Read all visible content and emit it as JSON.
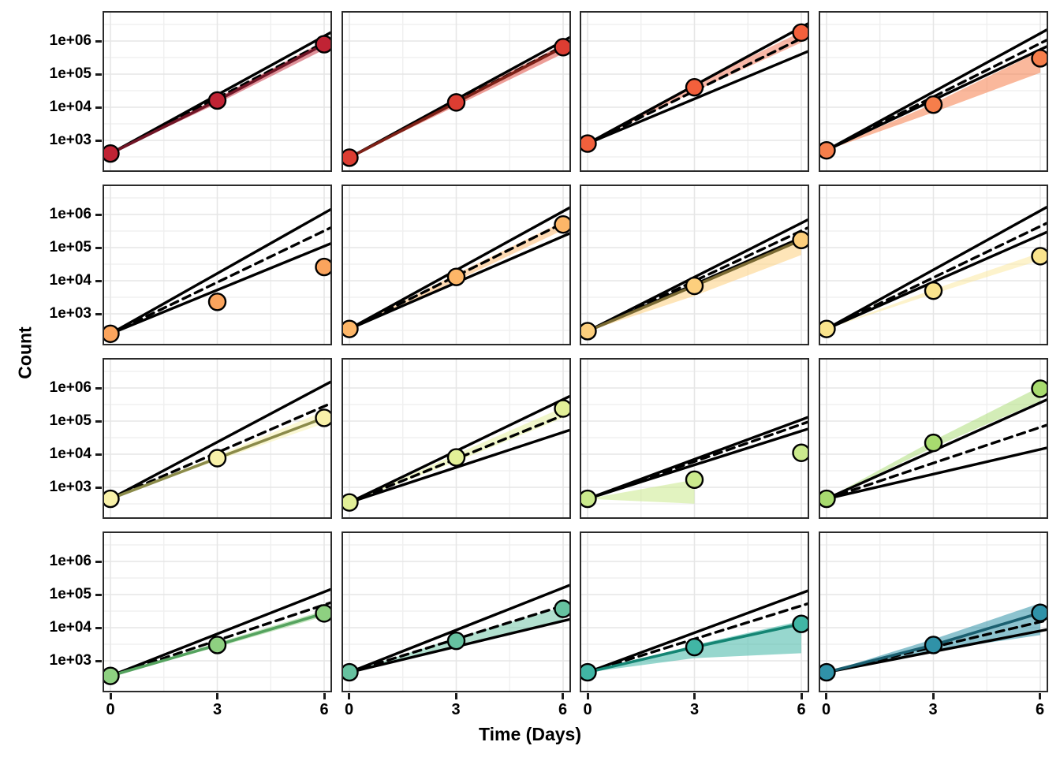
{
  "chart_data": {
    "type": "line",
    "layout": "facet-grid-4x4",
    "xlabel": "Time (Days)",
    "ylabel": "Count",
    "x_ticks": [
      "0",
      "3",
      "6"
    ],
    "x_values": [
      0,
      3,
      6
    ],
    "y_tick_labels": [
      "1e+06",
      "1e+05",
      "1e+04",
      "1e+03"
    ],
    "y_tick_values": [
      1000000,
      100000,
      10000,
      1000
    ],
    "y_scale": "log10",
    "ylim": [
      110,
      8000000
    ],
    "xlim": [
      -0.45,
      6.45
    ],
    "grid": "major and minor gridlines, light gray, white panel background",
    "legend": "none",
    "style": "black envelope lines (solid upper/lower), black dashed center prediction, colored fit line, colored ribbon, colored points with black outline",
    "facets": [
      {
        "row": 1,
        "col": 1,
        "point_color": "#C02334",
        "line_color": "#701526",
        "ribbon_alpha": 0.5,
        "fit_line": true,
        "points": {
          "x": [
            0,
            3,
            6
          ],
          "count": [
            400,
            16000,
            800000
          ]
        },
        "band": {
          "upper_end": 1400000,
          "dashed_end": 900000,
          "lower_end": null
        },
        "ribbon": {
          "x": [
            0,
            3,
            6
          ],
          "upper": [
            400,
            19000,
            1000000
          ],
          "lower": [
            400,
            13000,
            550000
          ]
        }
      },
      {
        "row": 1,
        "col": 2,
        "point_color": "#DC3D32",
        "line_color": "#7E2117",
        "ribbon_alpha": 0.5,
        "fit_line": true,
        "points": {
          "x": [
            0,
            3,
            6
          ],
          "count": [
            300,
            14000,
            650000
          ]
        },
        "band": {
          "upper_end": 1000000,
          "dashed_end": 700000,
          "lower_end": null
        },
        "ribbon": {
          "x": [
            0,
            3,
            6
          ],
          "upper": [
            300,
            17000,
            800000
          ],
          "lower": [
            300,
            11000,
            420000
          ]
        }
      },
      {
        "row": 1,
        "col": 3,
        "point_color": "#F2603C",
        "line_color": null,
        "ribbon_alpha": 0.45,
        "fit_line": false,
        "points": {
          "x": [
            0,
            3,
            6
          ],
          "count": [
            800,
            40000,
            1800000
          ]
        },
        "band": {
          "upper_end": 2600000,
          "dashed_end": 1200000,
          "lower_end": 400000
        },
        "ribbon": {
          "x": [
            0,
            3,
            6
          ],
          "upper": [
            800,
            50000,
            1900000
          ],
          "lower": [
            800,
            30000,
            900000
          ]
        }
      },
      {
        "row": 1,
        "col": 4,
        "point_color": "#F67E4B",
        "line_color": null,
        "ribbon_alpha": 0.55,
        "fit_line": false,
        "points": {
          "x": [
            0,
            3,
            6
          ],
          "count": [
            500,
            12000,
            300000
          ]
        },
        "band": {
          "upper_end": 1700000,
          "dashed_end": 850000,
          "lower_end": 550000
        },
        "ribbon": {
          "x": [
            0,
            3,
            6
          ],
          "upper": [
            500,
            13000,
            500000
          ],
          "lower": [
            500,
            7000,
            110000
          ]
        }
      },
      {
        "row": 2,
        "col": 1,
        "point_color": "#FBA45D",
        "line_color": null,
        "ribbon_alpha": 0.5,
        "fit_line": false,
        "points": {
          "x": [
            0,
            3,
            6
          ],
          "count": [
            250,
            2300,
            26000
          ]
        },
        "band": {
          "upper_end": 1100000,
          "dashed_end": 320000,
          "lower_end": 110000
        },
        "ribbon": null
      },
      {
        "row": 2,
        "col": 2,
        "point_color": "#FDB668",
        "line_color": null,
        "ribbon_alpha": 0.5,
        "fit_line": false,
        "points": {
          "x": [
            0,
            3,
            6
          ],
          "count": [
            350,
            13000,
            500000
          ]
        },
        "band": {
          "upper_end": 1250000,
          "dashed_end": 550000,
          "lower_end": 220000
        },
        "ribbon": {
          "x": [
            0,
            3,
            6
          ],
          "upper": [
            350,
            16000,
            620000
          ],
          "lower": [
            350,
            10000,
            340000
          ]
        }
      },
      {
        "row": 2,
        "col": 3,
        "point_color": "#FDCF7D",
        "line_color": "#7A6A33",
        "ribbon_alpha": 0.55,
        "fit_line": true,
        "points": {
          "x": [
            0,
            3,
            6
          ],
          "count": [
            300,
            7000,
            170000
          ]
        },
        "band": {
          "upper_end": 550000,
          "dashed_end": 320000,
          "lower_end": 200000
        },
        "ribbon": {
          "x": [
            0,
            3,
            6
          ],
          "upper": [
            300,
            7500,
            180000
          ],
          "lower": [
            300,
            3500,
            60000
          ]
        }
      },
      {
        "row": 2,
        "col": 4,
        "point_color": "#FAE48D",
        "line_color": null,
        "ribbon_alpha": 0.45,
        "fit_line": false,
        "points": {
          "x": [
            0,
            3,
            6
          ],
          "count": [
            350,
            5000,
            55000
          ]
        },
        "band": {
          "upper_end": 1300000,
          "dashed_end": 440000,
          "lower_end": 240000
        },
        "ribbon": {
          "x": [
            0,
            3,
            6
          ],
          "upper": [
            350,
            5500,
            70000
          ],
          "lower": [
            350,
            4000,
            42000
          ]
        }
      },
      {
        "row": 3,
        "col": 1,
        "point_color": "#F8F1A9",
        "line_color": "#8B8B4A",
        "ribbon_alpha": 0.5,
        "fit_line": true,
        "points": {
          "x": [
            0,
            3,
            6
          ],
          "count": [
            450,
            7600,
            125000
          ]
        },
        "band": {
          "upper_end": 1200000,
          "dashed_end": 280000,
          "lower_end": null
        },
        "ribbon": {
          "x": [
            0,
            3,
            6
          ],
          "upper": [
            450,
            9000,
            200000
          ],
          "lower": [
            450,
            6500,
            85000
          ]
        }
      },
      {
        "row": 3,
        "col": 2,
        "point_color": "#E3F098",
        "line_color": null,
        "ribbon_alpha": 0.5,
        "fit_line": false,
        "points": {
          "x": [
            0,
            3,
            6
          ],
          "count": [
            350,
            8000,
            240000
          ]
        },
        "band": {
          "upper_end": 450000,
          "dashed_end": 150000,
          "lower_end": 46000
        },
        "ribbon": {
          "x": [
            0,
            3,
            6
          ],
          "upper": [
            350,
            10000,
            260000
          ],
          "lower": [
            350,
            6000,
            125000
          ]
        }
      },
      {
        "row": 3,
        "col": 3,
        "point_color": "#CBEA8D",
        "line_color": null,
        "ribbon_alpha": 0.55,
        "fit_line": false,
        "points": {
          "x": [
            0,
            3,
            6
          ],
          "count": [
            450,
            1700,
            11000
          ]
        },
        "band": {
          "upper_end": 110000,
          "dashed_end": 80000,
          "lower_end": 50000
        },
        "ribbon": {
          "x": [
            0,
            3
          ],
          "upper": [
            450,
            1700
          ],
          "lower": [
            450,
            320
          ]
        }
      },
      {
        "row": 3,
        "col": 4,
        "point_color": "#A8DB6F",
        "line_color": null,
        "ribbon_alpha": 0.5,
        "fit_line": false,
        "points": {
          "x": [
            0,
            3,
            6
          ],
          "count": [
            450,
            22000,
            950000
          ]
        },
        "band": {
          "upper_end": 360000,
          "dashed_end": 65000,
          "lower_end": 14000
        },
        "ribbon": {
          "x": [
            0,
            3,
            6
          ],
          "upper": [
            450,
            26000,
            1100000
          ],
          "lower": [
            450,
            16000,
            400000
          ]
        }
      },
      {
        "row": 4,
        "col": 1,
        "point_color": "#8ED081",
        "line_color": "#55A35F",
        "ribbon_alpha": 0.5,
        "fit_line": true,
        "points": {
          "x": [
            0,
            3,
            6
          ],
          "count": [
            350,
            3000,
            27000
          ]
        },
        "band": {
          "upper_end": 120000,
          "dashed_end": 49000,
          "lower_end": null
        },
        "ribbon": {
          "x": [
            0,
            3,
            6
          ],
          "upper": [
            350,
            3500,
            33000
          ],
          "lower": [
            350,
            2600,
            22000
          ]
        }
      },
      {
        "row": 4,
        "col": 2,
        "point_color": "#66C2A0",
        "line_color": null,
        "ribbon_alpha": 0.5,
        "fit_line": false,
        "points": {
          "x": [
            0,
            3,
            6
          ],
          "count": [
            450,
            4000,
            37000
          ]
        },
        "band": {
          "upper_end": 160000,
          "dashed_end": 46000,
          "lower_end": 16000
        },
        "ribbon": {
          "x": [
            0,
            3,
            6
          ],
          "upper": [
            450,
            5000,
            42000
          ],
          "lower": [
            450,
            3000,
            17000
          ]
        }
      },
      {
        "row": 4,
        "col": 3,
        "point_color": "#41B6A5",
        "line_color": "#148573",
        "ribbon_alpha": 0.55,
        "fit_line": true,
        "points": {
          "x": [
            0,
            3,
            6
          ],
          "count": [
            450,
            2600,
            13000
          ]
        },
        "band": {
          "upper_end": 110000,
          "dashed_end": 46000,
          "lower_end": null
        },
        "ribbon": {
          "x": [
            0,
            3,
            6
          ],
          "upper": [
            450,
            3000,
            16000
          ],
          "lower": [
            450,
            1200,
            1700
          ]
        }
      },
      {
        "row": 4,
        "col": 4,
        "point_color": "#3092A8",
        "line_color": "#1B5F70",
        "ribbon_alpha": 0.55,
        "fit_line": true,
        "points": {
          "x": [
            0,
            3,
            6
          ],
          "count": [
            450,
            3000,
            28000
          ]
        },
        "band": {
          "upper_end": null,
          "dashed_end": 15000,
          "lower_end": 8000
        },
        "ribbon": {
          "x": [
            0,
            3,
            6
          ],
          "upper": [
            450,
            4500,
            55000
          ],
          "lower": [
            450,
            2000,
            6000
          ]
        }
      }
    ]
  }
}
